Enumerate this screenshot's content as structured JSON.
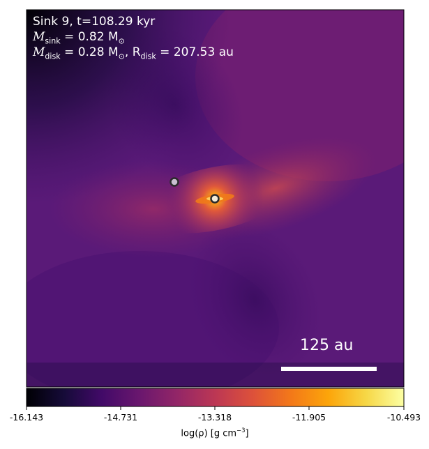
{
  "annotation": {
    "title": "Sink 9, t=108.29 kyr",
    "sink_mass_label": "M",
    "sink_mass_sub": "sink",
    "sink_mass_value": " = 0.82 M",
    "sun_symbol": "⊙",
    "disk_mass_label": "M",
    "disk_mass_sub": "disk",
    "disk_mass_value": " = 0.28 M",
    "disk_radius_label": ", R",
    "disk_radius_sub": "disk",
    "disk_radius_value": " = 207.53 au"
  },
  "scale_bar": {
    "label": "125 au"
  },
  "colorbar": {
    "colormap": "inferno",
    "ticks": [
      "-16.143",
      "-14.731",
      "-13.318",
      "-11.905",
      "-10.493"
    ],
    "label_prefix": "log(ρ) [g cm",
    "label_sup": "−3",
    "label_suffix": "]"
  },
  "colors": {
    "background_purple": "#5e1a79",
    "core_orange": "#f07a1a",
    "core_yellow": "#fcf3a0",
    "scale_bar": "#ffffff"
  },
  "sinks": [
    {
      "name": "secondary-sink",
      "fill": "#c9bfd0"
    },
    {
      "name": "primary-sink",
      "fill": "#f4ecd8"
    }
  ]
}
